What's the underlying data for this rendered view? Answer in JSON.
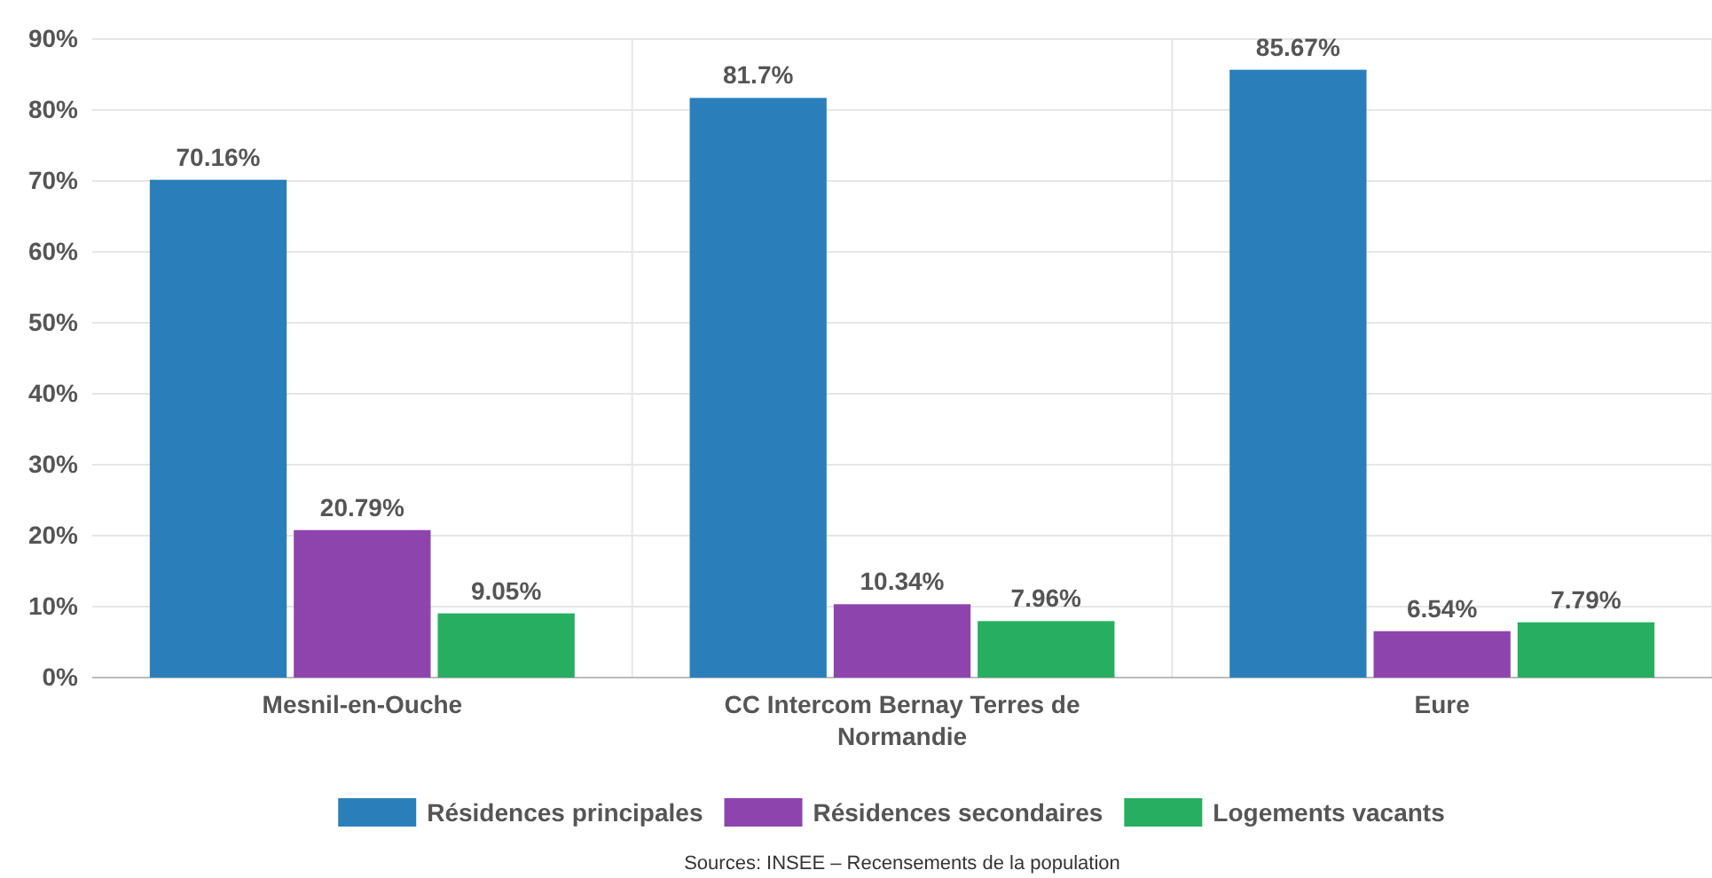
{
  "chart_data": {
    "type": "bar",
    "categories": [
      "Mesnil-en-Ouche",
      "CC Intercom Bernay Terres de Normandie",
      "Eure"
    ],
    "series": [
      {
        "name": "Résidences principales",
        "color": "#2a7fba",
        "values": [
          70.16,
          81.7,
          85.67
        ],
        "value_labels": [
          "70.16%",
          "81.7%",
          "85.67%"
        ]
      },
      {
        "name": "Résidences secondaires",
        "color": "#8e44ad",
        "values": [
          20.79,
          10.34,
          6.54
        ],
        "value_labels": [
          "20.79%",
          "10.34%",
          "6.54%"
        ]
      },
      {
        "name": "Logements vacants",
        "color": "#27ae60",
        "values": [
          9.05,
          7.96,
          7.79
        ],
        "value_labels": [
          "9.05%",
          "7.96%",
          "7.79%"
        ]
      }
    ],
    "ylim": [
      0,
      90
    ],
    "yticks": [
      {
        "value": 0,
        "label": "0%"
      },
      {
        "value": 10,
        "label": "10%"
      },
      {
        "value": 20,
        "label": "20%"
      },
      {
        "value": 30,
        "label": "30%"
      },
      {
        "value": 40,
        "label": "40%"
      },
      {
        "value": 50,
        "label": "50%"
      },
      {
        "value": 60,
        "label": "60%"
      },
      {
        "value": 70,
        "label": "70%"
      },
      {
        "value": 80,
        "label": "80%"
      },
      {
        "value": 90,
        "label": "90%"
      }
    ],
    "grid": true,
    "legend": "bottom",
    "annotations": [
      "Sources: INSEE – Recensements de la population"
    ]
  }
}
